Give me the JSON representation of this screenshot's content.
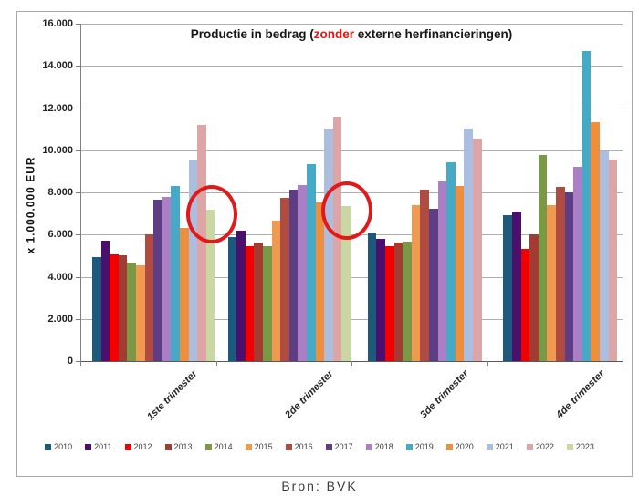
{
  "figure": {
    "title": {
      "prefix": "Productie in bedrag (",
      "highlight": "zonder",
      "suffix": " externe herfinancieringen)",
      "highlight_color": "#ee1111",
      "text_color": "#161616"
    },
    "y_axis_label": "x 1.000.000  EUR",
    "source": "Bron:  BVK"
  },
  "chart_data": {
    "type": "bar",
    "title": "Productie in bedrag (zonder externe herfinancieringen)",
    "xlabel": "",
    "ylabel": "x 1.000.000 EUR",
    "ylim": [
      0,
      16000
    ],
    "ytick_interval": 2000,
    "ytick_labels": [
      "0",
      "2.000",
      "4.000",
      "6.000",
      "8.000",
      "10.000",
      "12.000",
      "14.000",
      "16.000"
    ],
    "grid": true,
    "legend_position": "bottom",
    "categories": [
      "1ste trimester",
      "2de trimester",
      "3de trimester",
      "4de trimester"
    ],
    "series": [
      {
        "name": "2010",
        "color": "#1c5a7d",
        "values": [
          4950,
          5870,
          6060,
          6930
        ]
      },
      {
        "name": "2011",
        "color": "#4b0f6e",
        "values": [
          5700,
          6180,
          5810,
          7090
        ]
      },
      {
        "name": "2012",
        "color": "#f20000",
        "values": [
          5080,
          5430,
          5460,
          5310
        ]
      },
      {
        "name": "2013",
        "color": "#a23b32",
        "values": [
          5000,
          5620,
          5630,
          5990
        ]
      },
      {
        "name": "2014",
        "color": "#7a9845",
        "values": [
          4650,
          5450,
          5680,
          9780
        ]
      },
      {
        "name": "2015",
        "color": "#f09a4f",
        "values": [
          4530,
          6680,
          7390,
          7400
        ]
      },
      {
        "name": "2016",
        "color": "#b04b42",
        "values": [
          6000,
          7760,
          8110,
          8250
        ]
      },
      {
        "name": "2017",
        "color": "#5d3e85",
        "values": [
          7650,
          8130,
          7230,
          8010
        ]
      },
      {
        "name": "2018",
        "color": "#aa7fc6",
        "values": [
          7780,
          8350,
          8540,
          9230
        ]
      },
      {
        "name": "2019",
        "color": "#46a9c6",
        "values": [
          8300,
          9320,
          9440,
          14700
        ]
      },
      {
        "name": "2020",
        "color": "#ef8e3f",
        "values": [
          6300,
          7540,
          8290,
          11320
        ]
      },
      {
        "name": "2021",
        "color": "#acbedf",
        "values": [
          9520,
          11030,
          11020,
          9930
        ]
      },
      {
        "name": "2022",
        "color": "#dda5a5",
        "values": [
          11200,
          11590,
          10540,
          9570
        ]
      },
      {
        "name": "2023",
        "color": "#c9d8a3",
        "values": [
          7180,
          7350,
          null,
          null
        ]
      }
    ],
    "annotations": [
      {
        "shape": "ellipse",
        "color": "#e31818",
        "category_index": 0,
        "series_name": "2023",
        "meaning": "highlight of 2023 value, 1ste trimester"
      },
      {
        "shape": "ellipse",
        "color": "#e31818",
        "category_index": 1,
        "series_name": "2023",
        "meaning": "highlight of 2023 value, 2de trimester"
      }
    ]
  }
}
